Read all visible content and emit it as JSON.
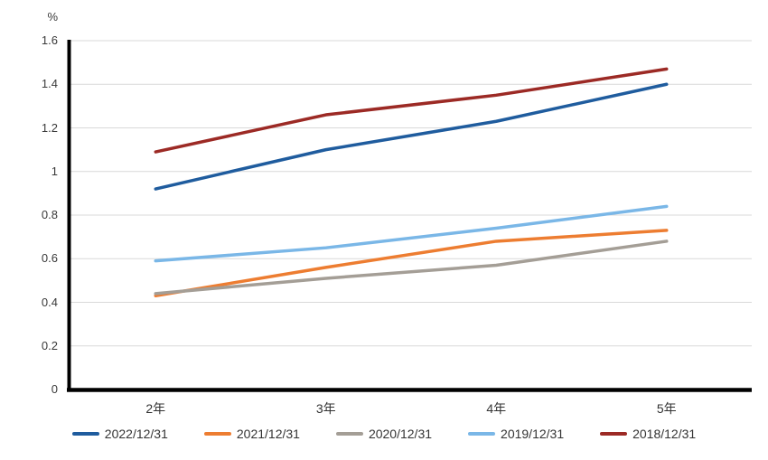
{
  "chart_data": {
    "type": "line",
    "title": "",
    "unit_label": "%",
    "categories": [
      "2年",
      "3年",
      "4年",
      "5年"
    ],
    "series": [
      {
        "name": "2022/12/31",
        "color": "#1F5C9E",
        "values": [
          0.92,
          1.1,
          1.23,
          1.4
        ]
      },
      {
        "name": "2021/12/31",
        "color": "#ED7D31",
        "values": [
          0.43,
          0.56,
          0.68,
          0.73
        ]
      },
      {
        "name": "2020/12/31",
        "color": "#A49E96",
        "values": [
          0.44,
          0.51,
          0.57,
          0.68
        ]
      },
      {
        "name": "2019/12/31",
        "color": "#7AB7E7",
        "values": [
          0.59,
          0.65,
          0.74,
          0.84
        ]
      },
      {
        "name": "2018/12/31",
        "color": "#9C2A25",
        "values": [
          1.09,
          1.26,
          1.35,
          1.47
        ]
      }
    ],
    "y_axis": {
      "min": 0,
      "max": 1.6,
      "step": 0.2,
      "tick_labels": [
        "0",
        "0.2",
        "0.4",
        "0.6",
        "0.8",
        "1",
        "1.2",
        "1.4",
        "1.6"
      ]
    },
    "x_axis": {
      "tick_labels": [
        "2年",
        "3年",
        "4年",
        "5年"
      ]
    },
    "grid": true,
    "gridline_color": "#D9D9D9",
    "axis_color": "#000000",
    "legend_position": "bottom"
  }
}
